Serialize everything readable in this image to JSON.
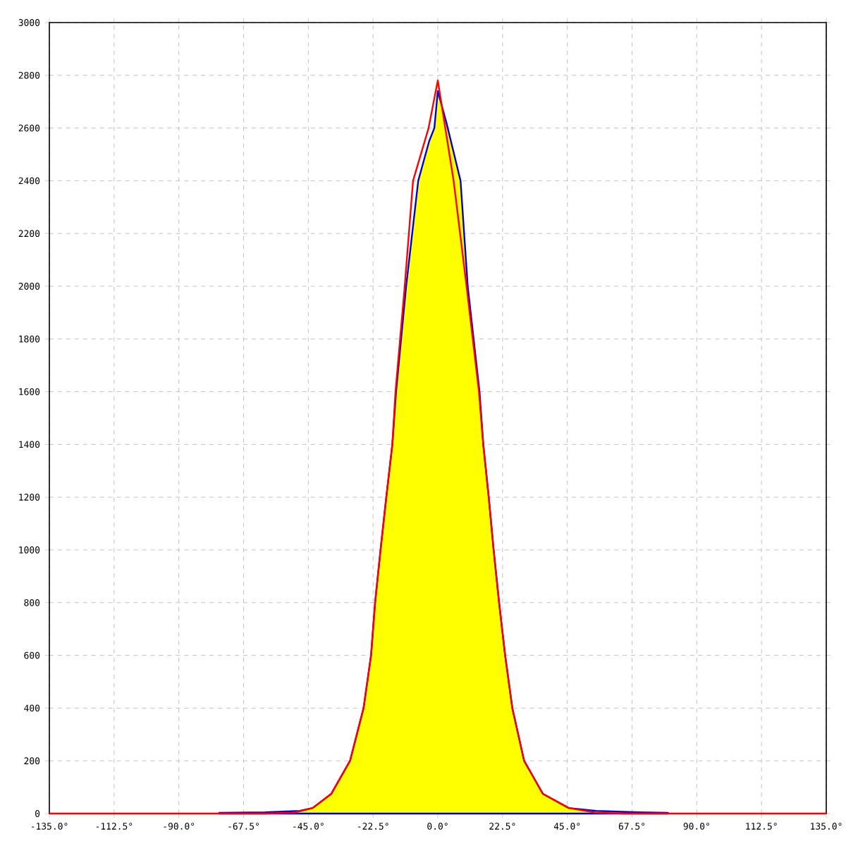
{
  "chart_data": {
    "type": "area",
    "xlim": [
      -135,
      135
    ],
    "ylim": [
      0,
      3000
    ],
    "xticks": [
      {
        "value": -135,
        "label": "-135.0°"
      },
      {
        "value": -112.5,
        "label": "-112.5°"
      },
      {
        "value": -90,
        "label": "-90.0°"
      },
      {
        "value": -67.5,
        "label": "-67.5°"
      },
      {
        "value": -45,
        "label": "-45.0°"
      },
      {
        "value": -22.5,
        "label": "-22.5°"
      },
      {
        "value": 0,
        "label": "0.0°"
      },
      {
        "value": 22.5,
        "label": "22.5°"
      },
      {
        "value": 45,
        "label": "45.0°"
      },
      {
        "value": 67.5,
        "label": "67.5°"
      },
      {
        "value": 90,
        "label": "90.0°"
      },
      {
        "value": 112.5,
        "label": "112.5°"
      },
      {
        "value": 135,
        "label": "135.0°"
      }
    ],
    "yticks": [
      0,
      200,
      400,
      600,
      800,
      1000,
      1200,
      1400,
      1600,
      1800,
      2000,
      2200,
      2400,
      2600,
      2800,
      3000
    ],
    "grid": true,
    "series": [
      {
        "color": "#ffff00",
        "x": [
          -76,
          -60,
          -48,
          -43.5,
          -37,
          -30.5,
          -25.8,
          -23.2,
          -21.8,
          -19.9,
          -17.9,
          -15.8,
          -14.5,
          -11,
          -6.8,
          -3,
          -1.2,
          0,
          3,
          7.9,
          10.4,
          14.5,
          15.8,
          17.7,
          19.4,
          21.3,
          23.4,
          25.9,
          30,
          36.5,
          45.5,
          55,
          70,
          80
        ],
        "values": [
          3,
          5,
          10,
          21,
          75,
          200,
          400,
          600,
          800,
          1000,
          1200,
          1400,
          1600,
          2000,
          2400,
          2550,
          2600,
          2740,
          2620,
          2400,
          2000,
          1600,
          1400,
          1200,
          1000,
          800,
          600,
          400,
          200,
          75,
          21,
          10,
          5,
          3
        ]
      },
      {
        "type": "line",
        "color": "#ff0000",
        "x": [
          -135,
          -60,
          -50,
          -43.5,
          -37,
          -30.5,
          -25.8,
          -23.2,
          -21.8,
          -19.9,
          -17.9,
          -15.8,
          -14.7,
          -11.5,
          -8.6,
          -3.2,
          0,
          5.5,
          10,
          14.3,
          15.8,
          17.7,
          19.4,
          21.3,
          23.4,
          25.9,
          30,
          36.5,
          45.5,
          55,
          65,
          135
        ],
        "values": [
          0,
          0,
          3,
          21,
          75,
          200,
          400,
          600,
          800,
          1000,
          1200,
          1400,
          1600,
          2000,
          2400,
          2600,
          2780,
          2400,
          2000,
          1600,
          1400,
          1200,
          1000,
          800,
          600,
          400,
          200,
          75,
          21,
          3,
          0,
          0
        ]
      }
    ]
  }
}
